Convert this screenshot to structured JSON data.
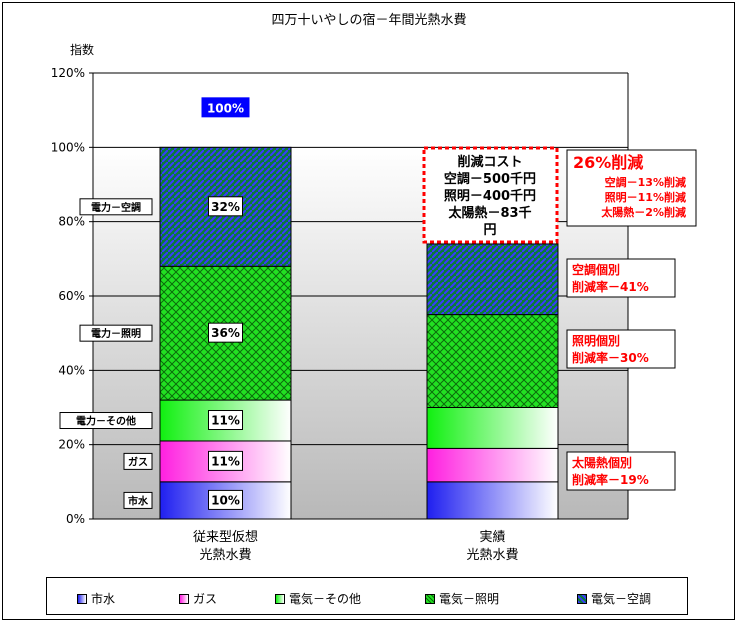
{
  "chart_data": {
    "type": "bar",
    "stacked": true,
    "title": "四万十いやしの宿－年間光熱水費",
    "ylabel": "指数",
    "ylim": [
      0,
      120
    ],
    "yticks": [
      "0%",
      "20%",
      "40%",
      "60%",
      "80%",
      "100%",
      "120%"
    ],
    "yticks_values": [
      0,
      20,
      40,
      60,
      80,
      100,
      120
    ],
    "grid": true,
    "legend_position": "bottom",
    "categories": [
      [
        "従来型仮想",
        "光熱水費"
      ],
      [
        "実績",
        "光熱水費"
      ]
    ],
    "totals": [
      "100%",
      "74%"
    ],
    "series": [
      {
        "name": "市水",
        "values": [
          10,
          10
        ],
        "color": "#1f1ff0",
        "pattern": "gradient"
      },
      {
        "name": "ガス",
        "values": [
          11,
          9
        ],
        "color": "#ff1fe0",
        "pattern": "gradient"
      },
      {
        "name": "電気－その他",
        "values": [
          11,
          11
        ],
        "color": "#10f010",
        "pattern": "gradient"
      },
      {
        "name": "電気－照明",
        "values": [
          36,
          25
        ],
        "color": "#10e010",
        "pattern": "crosshatch"
      },
      {
        "name": "電気－空調",
        "values": [
          32,
          19
        ],
        "color": "#0a8a3a",
        "pattern": "diagonal"
      }
    ],
    "bar_labels": [
      "10%",
      "11%",
      "11%",
      "36%",
      "32%"
    ],
    "axis_side_labels": [
      "市水",
      "ガス",
      "電力－その他",
      "電力－照明",
      "電力－空調"
    ],
    "center_box": [
      "削減コスト",
      "空調－500千円",
      "照明－400千円",
      "太陽熱－83千",
      "円"
    ],
    "annotations": {
      "total": {
        "title": "26%削減",
        "lines": [
          "空調－13%削減",
          "照明－11%削減",
          "太陽熱－2%削減"
        ]
      },
      "aircon": [
        "空調個別",
        "削減率－41%"
      ],
      "lighting": [
        "照明個別",
        "削減率－30%"
      ],
      "solar": [
        "太陽熱個別",
        "削減率－19%"
      ]
    },
    "colors": {
      "accent_red": "#ff0000",
      "total_badge": "#0000ff",
      "plot_bg": "#c8c8c8"
    }
  }
}
